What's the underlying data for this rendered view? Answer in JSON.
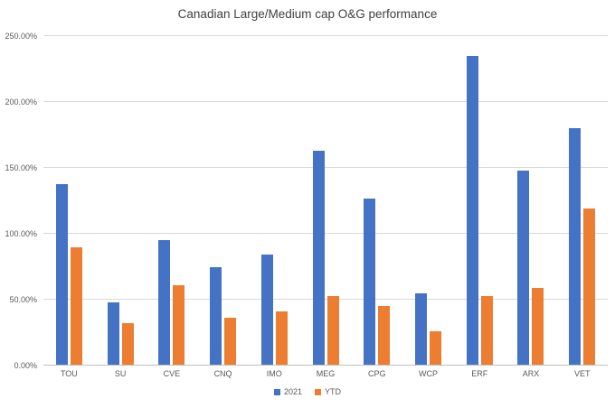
{
  "chart_data": {
    "type": "bar",
    "title": "Canadian Large/Medium cap O&G performance",
    "categories": [
      "TOU",
      "SU",
      "CVE",
      "CNQ",
      "IMO",
      "MEG",
      "CPG",
      "WCP",
      "ERF",
      "ARX",
      "VET"
    ],
    "series": [
      {
        "name": "2021",
        "color": "#4472C4",
        "values": [
          138,
          48,
          95,
          75,
          84,
          163,
          127,
          55,
          235,
          148,
          180
        ]
      },
      {
        "name": "YTD",
        "color": "#ED7D31",
        "values": [
          90,
          32,
          61,
          36,
          41,
          53,
          45,
          26,
          53,
          59,
          119
        ]
      }
    ],
    "xlabel": "",
    "ylabel": "",
    "ylim": [
      0,
      250
    ],
    "ytick_step": 50,
    "ytick_labels": [
      "0.00%",
      "50.00%",
      "100.00%",
      "150.00%",
      "200.00%",
      "250.00%"
    ],
    "grid": true,
    "legend_position": "bottom"
  }
}
